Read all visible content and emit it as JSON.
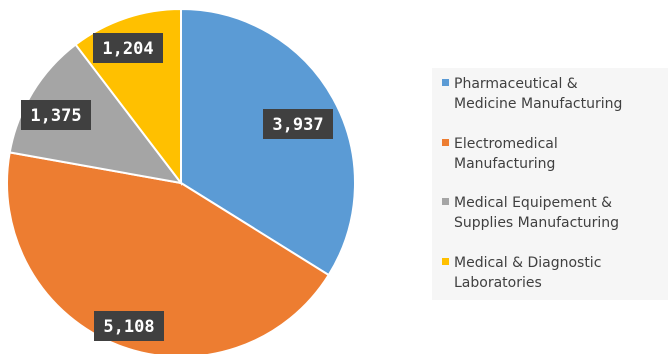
{
  "chart_data": {
    "type": "pie",
    "title": "",
    "start_angle": "12 o'clock, clockwise",
    "labels_shown": "values on dark boxes",
    "legend_position": "right",
    "series": [
      {
        "name": "",
        "values": [
          3937,
          5108,
          1375,
          1204
        ],
        "categories": [
          "Pharmaceutical & Medicine Manufacturing",
          "Electromedical Manufacturing",
          "Medical Equipement & Supplies Manufacturing",
          "Medical & Diagnostic Laboratories"
        ],
        "value_labels": [
          "3,937",
          "5,108",
          "1,375",
          "1,204"
        ]
      }
    ],
    "colors": [
      "#5b9bd5",
      "#ed7d31",
      "#a5a5a5",
      "#ffc000"
    ],
    "legend": {
      "entries": [
        {
          "lines": [
            "Pharmaceutical &",
            "Medicine Manufacturing"
          ],
          "color": "#5b9bd5"
        },
        {
          "lines": [
            "Electromedical",
            "Manufacturing"
          ],
          "color": "#ed7d31"
        },
        {
          "lines": [
            "Medical Equipement &",
            "Supplies Manufacturing"
          ],
          "color": "#a5a5a5"
        },
        {
          "lines": [
            "Medical & Diagnostic",
            "Laboratories"
          ],
          "color": "#ffc000"
        }
      ]
    },
    "label_style": {
      "fill": "#404040",
      "text_color": "#ffffff"
    }
  }
}
